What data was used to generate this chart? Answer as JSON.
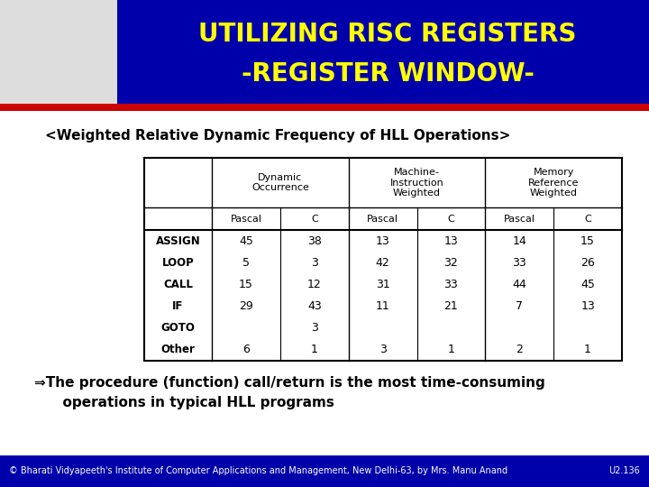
{
  "title_line1": "UTILIZING RISC REGISTERS",
  "title_line2": "-REGISTER WINDOW-",
  "title_bg": "#0000AA",
  "title_color": "#FFFF00",
  "red_bar_color": "#CC0000",
  "subtitle": "<Weighted Relative Dynamic Frequency of HLL Operations>",
  "footer_text": "© Bharati Vidyapeeth's Institute of Computer Applications and Management, New Delhi-63, by Mrs. Manu Anand",
  "footer_right": "U2.136",
  "footer_bg": "#0000AA",
  "footer_color": "#FFFFFF",
  "bg_color": "#FFFFFF",
  "col_headers_main": [
    "Dynamic\nOccurrence",
    "Machine-\nInstruction\nWeighted",
    "Memory\nReference\nWeighted"
  ],
  "col_headers_sub": [
    "Pascal",
    "C",
    "Pascal",
    "C",
    "Pascal",
    "C"
  ],
  "row_labels": [
    "ASSIGN",
    "LOOP",
    "CALL",
    "IF",
    "GOTO",
    "Other"
  ],
  "table_data": [
    [
      "45",
      "38",
      "13",
      "13",
      "14",
      "15"
    ],
    [
      "5",
      "3",
      "42",
      "32",
      "33",
      "26"
    ],
    [
      "15",
      "12",
      "31",
      "33",
      "44",
      "45"
    ],
    [
      "29",
      "43",
      "11",
      "21",
      "7",
      "13"
    ],
    [
      "",
      "3",
      "",
      "",
      "",
      ""
    ],
    [
      "6",
      "1",
      "3",
      "1",
      "2",
      "1"
    ]
  ],
  "arrow_line1": "⇒The procedure (function) call/return is the most time-consuming",
  "arrow_line2": "      operations in typical HLL programs"
}
